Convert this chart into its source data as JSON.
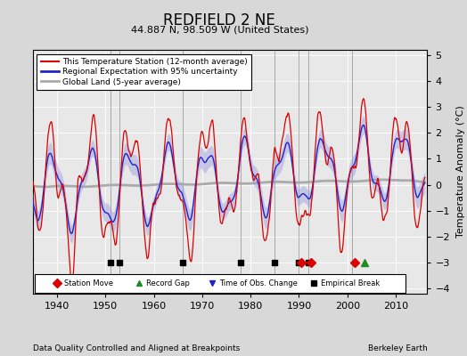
{
  "title": "REDFIELD 2 NE",
  "subtitle": "44.887 N, 98.509 W (United States)",
  "ylabel": "Temperature Anomaly (°C)",
  "xlabel_note": "Data Quality Controlled and Aligned at Breakpoints",
  "source_note": "Berkeley Earth",
  "xlim": [
    1935,
    2016.5
  ],
  "ylim": [
    -4.2,
    5.2
  ],
  "yticks": [
    -4,
    -3,
    -2,
    -1,
    0,
    1,
    2,
    3,
    4,
    5
  ],
  "xticks": [
    1940,
    1950,
    1960,
    1970,
    1980,
    1990,
    2000,
    2010
  ],
  "bg_color": "#d8d8d8",
  "plot_bg_color": "#e8e8e8",
  "station_move_years": [
    1990.5,
    1992.5,
    2001.5
  ],
  "record_gap_years": [
    2003.5
  ],
  "obs_change_years": [],
  "empirical_break_years": [
    1951,
    1953,
    1966,
    1978,
    1985,
    1990,
    1992
  ],
  "vertical_line_years": [
    1951,
    1953,
    1966,
    1978,
    1985,
    1990,
    1992,
    2001
  ],
  "marker_y": -3.0,
  "red_line_color": "#dd0000",
  "blue_line_color": "#2222cc",
  "blue_fill_color": "#9999dd",
  "gray_line_color": "#aaaaaa",
  "vline_color": "#999999"
}
